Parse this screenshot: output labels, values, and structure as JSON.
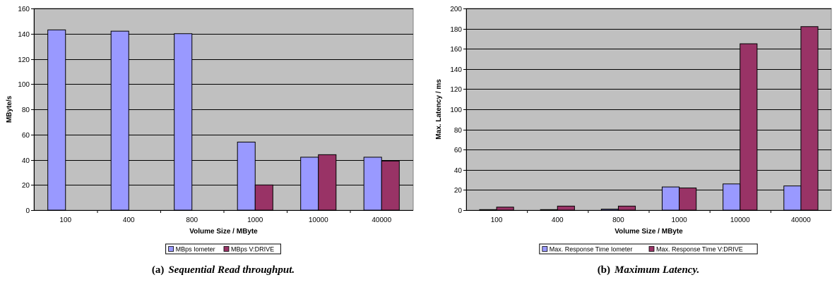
{
  "chart_data": [
    {
      "type": "bar",
      "categories": [
        "100",
        "400",
        "800",
        "1000",
        "10000",
        "40000"
      ],
      "series": [
        {
          "name": "MBps Iometer",
          "values": [
            143,
            142,
            140,
            54,
            42,
            42
          ],
          "color": "#9999ff"
        },
        {
          "name": "MBps V:DRIVE",
          "values": [
            0,
            0,
            0,
            20,
            44,
            39
          ],
          "color": "#993366"
        }
      ],
      "xlabel": "Volume Size / MByte",
      "ylabel": "MByte/s",
      "ylim": [
        0,
        160
      ],
      "yticks": [
        0,
        20,
        40,
        60,
        80,
        100,
        120,
        140,
        160
      ],
      "grid": true,
      "legend": "bottom",
      "caption_label": "(a)",
      "caption_text": "Sequential Read throughput."
    },
    {
      "type": "bar",
      "categories": [
        "100",
        "400",
        "800",
        "1000",
        "10000",
        "40000"
      ],
      "series": [
        {
          "name": "Max. Response Time Iometer",
          "values": [
            0.5,
            0.5,
            1,
            23,
            26,
            24
          ],
          "color": "#9999ff"
        },
        {
          "name": "Max. Response Time V:DRIVE",
          "values": [
            3,
            4,
            4,
            22,
            165,
            182
          ],
          "color": "#993366"
        }
      ],
      "xlabel": "Volume Size / MByte",
      "ylabel": "Max. Latency / ms",
      "ylim": [
        0,
        200
      ],
      "yticks": [
        0,
        20,
        40,
        60,
        80,
        100,
        120,
        140,
        160,
        180,
        200
      ],
      "grid": true,
      "legend": "bottom",
      "caption_label": "(b)",
      "caption_text": "Maximum Latency."
    }
  ],
  "colors": {
    "plot_background": "#c0c0c0",
    "gridline": "#000000",
    "bar_outline": "#000000"
  }
}
